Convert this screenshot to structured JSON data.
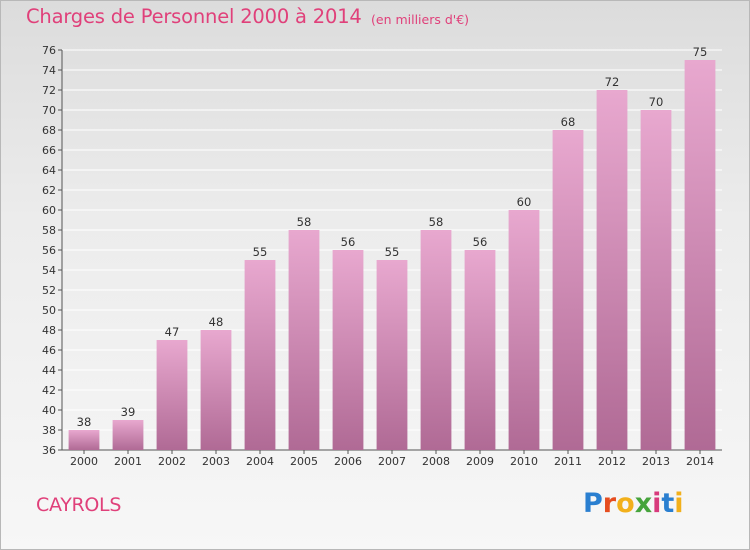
{
  "header": {
    "title": "Charges de Personnel 2000 à 2014",
    "subtitle": "(en milliers d'€)"
  },
  "footer": {
    "commune": "CAYROLS",
    "brand": [
      "P",
      "r",
      "o",
      "x",
      "i",
      "t",
      "i"
    ]
  },
  "colors": {
    "title": "#e0407a",
    "bar_top": "#e8a8cf",
    "bar_bottom": "#b06a95",
    "grid": "#ffffff"
  },
  "chart_data": {
    "type": "bar",
    "title": "Charges de Personnel 2000 à 2014",
    "subtitle": "(en milliers d'€)",
    "categories": [
      "2000",
      "2001",
      "2002",
      "2003",
      "2004",
      "2005",
      "2006",
      "2007",
      "2008",
      "2009",
      "2010",
      "2011",
      "2012",
      "2013",
      "2014"
    ],
    "values": [
      38,
      39,
      47,
      48,
      55,
      58,
      56,
      55,
      58,
      56,
      60,
      68,
      72,
      70,
      75
    ],
    "ylim": [
      36,
      76
    ],
    "ytick_step": 2,
    "grid": true,
    "xlabel": "",
    "ylabel": ""
  }
}
